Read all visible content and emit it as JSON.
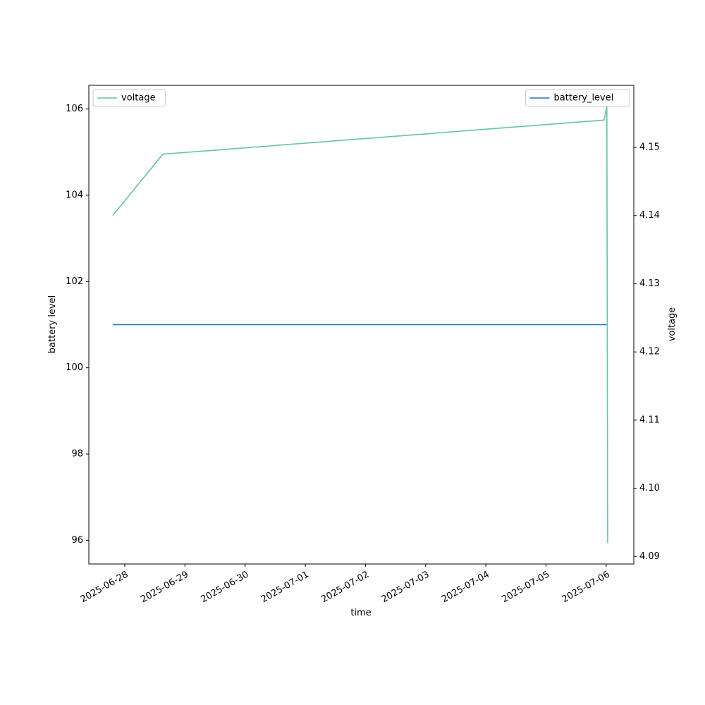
{
  "chart_data": {
    "type": "line",
    "x_label": "time",
    "y_label": "battery level",
    "y2_label": "voltage",
    "x": [
      "2025-06-27T19:12",
      "2025-06-28T15:10",
      "2025-07-05T23:10",
      "2025-07-06T00:15",
      "2025-07-06T00:35"
    ],
    "series": [
      {
        "name": "battery_level",
        "color": "#1f77b4",
        "axis": "y",
        "legend_loc": "upper right",
        "values": [
          101,
          101,
          101,
          101,
          101
        ]
      },
      {
        "name": "voltage",
        "color": "#66c2a5",
        "axis": "y2",
        "legend_loc": "upper left",
        "values": [
          4.14,
          4.149,
          4.154,
          4.156,
          4.092
        ]
      }
    ],
    "xlim": [
      "2025-06-27T09:40",
      "2025-07-06T11:00"
    ],
    "xticks": [
      "2025-06-28",
      "2025-06-29",
      "2025-06-30",
      "2025-07-01",
      "2025-07-02",
      "2025-07-03",
      "2025-07-04",
      "2025-07-05",
      "2025-07-06"
    ],
    "ylim": [
      95.45,
      106.55
    ],
    "yticks": [
      96,
      98,
      100,
      102,
      104,
      106
    ],
    "y2lim": [
      4.0889,
      4.1591
    ],
    "y2ticks": [
      {
        "value": 4.09,
        "label": "4.09"
      },
      {
        "value": 4.1,
        "label": "4.10"
      },
      {
        "value": 4.11,
        "label": "4.11"
      },
      {
        "value": 4.12,
        "label": "4.12"
      },
      {
        "value": 4.13,
        "label": "4.13"
      },
      {
        "value": 4.14,
        "label": "4.14"
      },
      {
        "value": 4.15,
        "label": "4.15"
      }
    ],
    "grid": false
  }
}
